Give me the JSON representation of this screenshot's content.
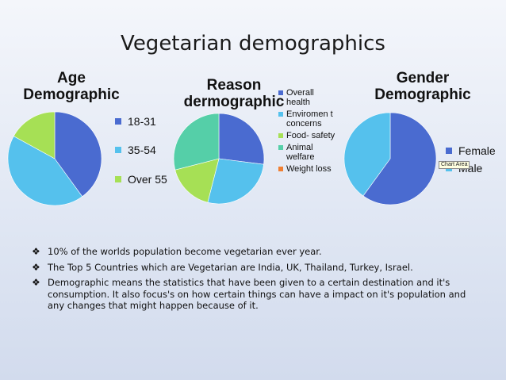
{
  "title": "Vegetarian demographics",
  "chart_data": [
    {
      "type": "pie",
      "title": "Age Demographic",
      "categories": [
        "18-31",
        "35-54",
        "Over 55"
      ],
      "values": [
        40,
        43,
        17
      ],
      "colors": [
        "#4a6bd0",
        "#55c1ed",
        "#a6e055"
      ],
      "legend": "right"
    },
    {
      "type": "pie",
      "title": "Reason dermographic",
      "categories": [
        "Overall health",
        "Enviroment concerns",
        "Food-safety",
        "Animal welfare",
        "Weight loss"
      ],
      "legend_labels": [
        "Overall health",
        "Enviromen t concerns",
        "Food- safety",
        "Animal welfare",
        "Weight loss"
      ],
      "values": [
        27,
        27,
        17,
        29,
        0
      ],
      "colors": [
        "#4a6bd0",
        "#55c1ed",
        "#a6e055",
        "#55cfa8",
        "#f07f32"
      ],
      "legend": "right"
    },
    {
      "type": "pie",
      "title": "Gender Demographic",
      "categories": [
        "Female",
        "Male"
      ],
      "values": [
        60,
        40
      ],
      "colors": [
        "#4a6bd0",
        "#55c1ed"
      ],
      "legend": "right"
    }
  ],
  "tooltip": "Chart Area",
  "bullets": [
    "10% of the worlds population become vegetarian ever year.",
    "The Top 5 Countries which are Vegetarian are India, UK, Thailand, Turkey,  Israel.",
    "Demographic means the statistics that have been given to a certain destination and it's consumption. It also focus's on how certain things can have a impact on it's population and any changes that might happen because of it."
  ],
  "bullet_icon": "diamond-bullet-icon"
}
